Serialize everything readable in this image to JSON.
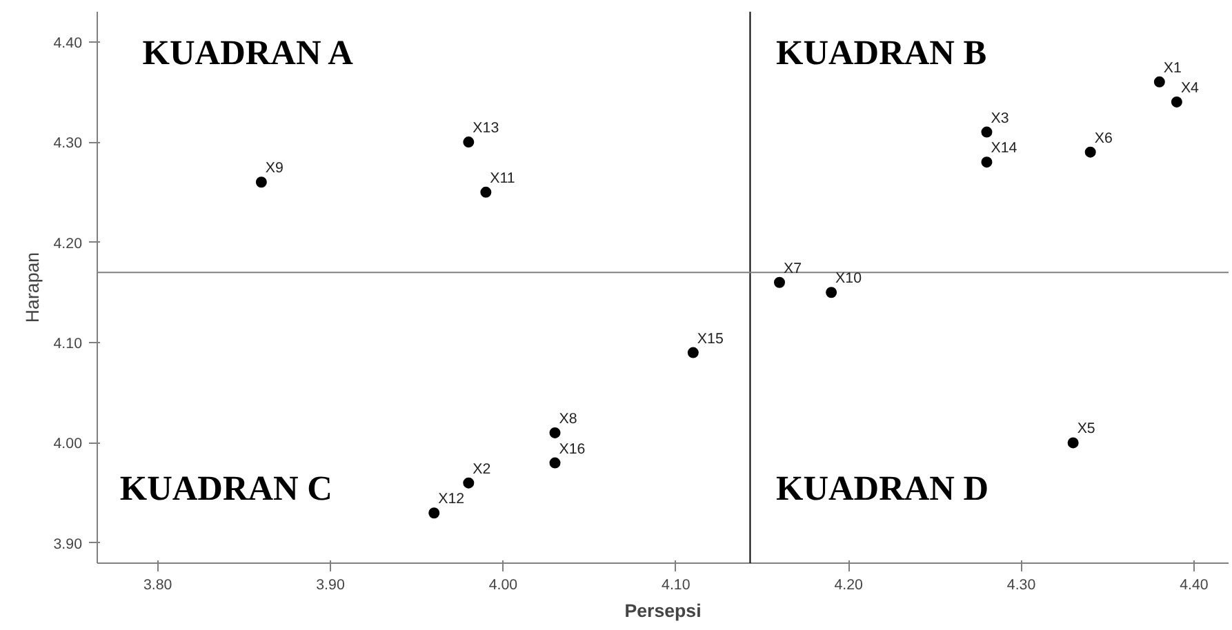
{
  "chart_data": {
    "type": "scatter",
    "xlabel": "Persepsi",
    "ylabel": "Harapan",
    "x": [
      4.38,
      3.98,
      4.28,
      4.39,
      4.33,
      4.34,
      4.16,
      4.03,
      3.86,
      4.19,
      3.99,
      3.96,
      3.98,
      4.28,
      4.11,
      4.03
    ],
    "series": [
      {
        "color": "#000000",
        "values": [
          4.36,
          3.96,
          4.31,
          4.34,
          4.0,
          4.29,
          4.16,
          4.01,
          4.26,
          4.15,
          4.25,
          3.93,
          4.3,
          4.28,
          4.09,
          3.98
        ],
        "value_labels": [
          "X1",
          "X2",
          "X3",
          "X4",
          "X5",
          "X6",
          "X7",
          "X8",
          "X9",
          "X10",
          "X11",
          "X12",
          "X13",
          "X14",
          "X15",
          "X16"
        ]
      }
    ],
    "xlim": [
      3.765,
      4.42
    ],
    "ylim": [
      3.88,
      4.43
    ],
    "xticks": [
      {
        "value": 3.8,
        "label": "3.80"
      },
      {
        "value": 3.9,
        "label": "3.90"
      },
      {
        "value": 4.0,
        "label": "4.00"
      },
      {
        "value": 4.1,
        "label": "4.10"
      },
      {
        "value": 4.2,
        "label": "4.20"
      },
      {
        "value": 4.3,
        "label": "4.30"
      },
      {
        "value": 4.4,
        "label": "4.40"
      }
    ],
    "yticks": [
      {
        "value": 3.9,
        "label": "3.90"
      },
      {
        "value": 4.0,
        "label": "4.00"
      },
      {
        "value": 4.1,
        "label": "4.10"
      },
      {
        "value": 4.2,
        "label": "4.20"
      },
      {
        "value": 4.3,
        "label": "4.30"
      },
      {
        "value": 4.4,
        "label": "4.40"
      }
    ],
    "ref_lines": [
      {
        "axis": "x",
        "value": 4.143,
        "color": "#000000"
      },
      {
        "axis": "y",
        "value": 4.17,
        "color": "#808080"
      }
    ],
    "annotations": [
      "KUADRAN A",
      "KUADRAN B",
      "KUADRAN C",
      "KUADRAN D"
    ],
    "grid": false,
    "marker": "circle"
  }
}
